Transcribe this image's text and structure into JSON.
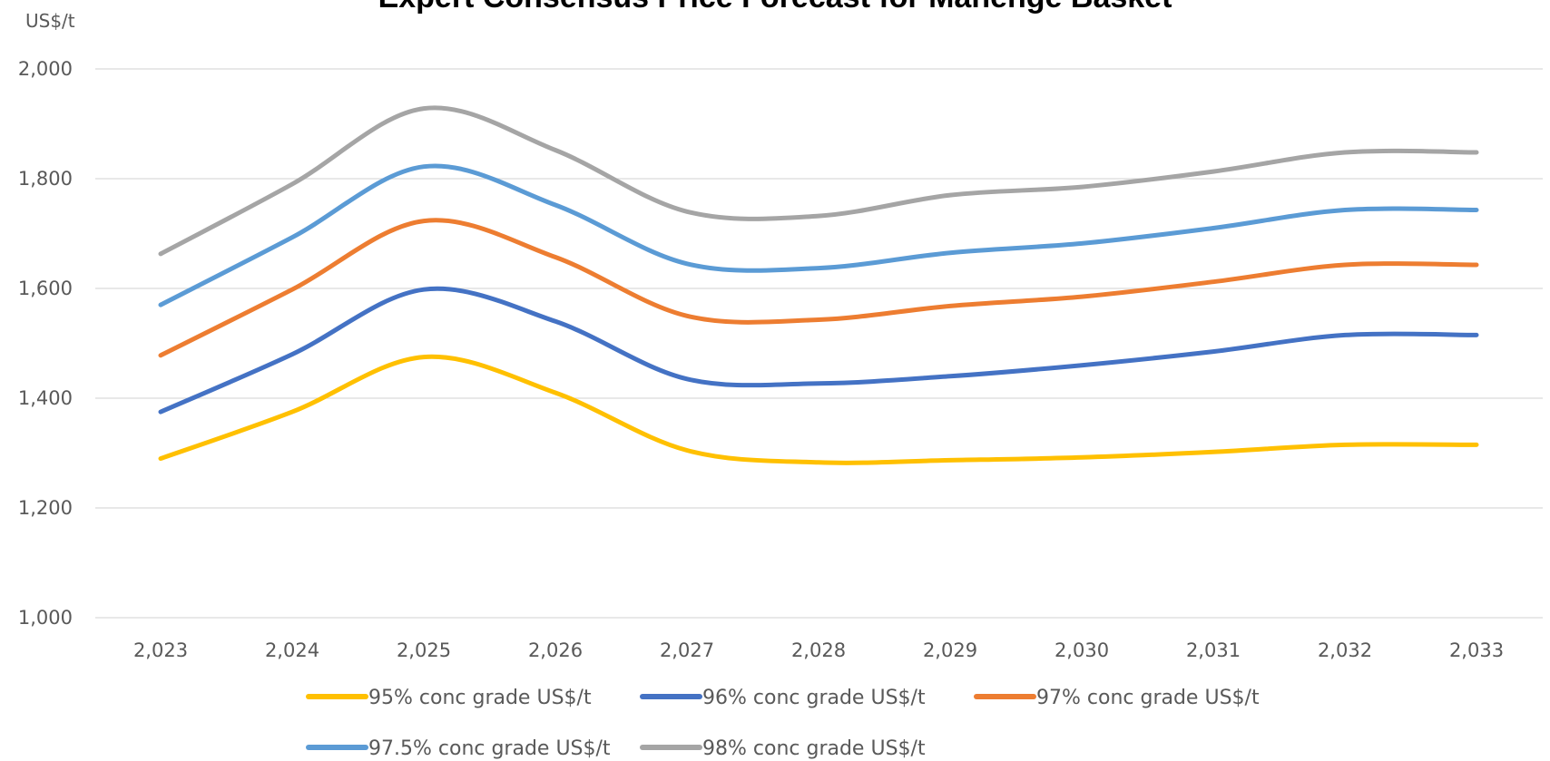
{
  "chart_data": {
    "type": "line",
    "title": "Expert Consensus Price Forecast for Mahenge Basket",
    "ylabel": "US$/t",
    "xlabel": "",
    "ylim": [
      1000,
      2000
    ],
    "y_ticks": [
      "1,000",
      "1,200",
      "1,400",
      "1,600",
      "1,800",
      "2,000"
    ],
    "y_tick_values": [
      1000,
      1200,
      1400,
      1600,
      1800,
      2000
    ],
    "categories": [
      "2,023",
      "2,024",
      "2,025",
      "2,026",
      "2,027",
      "2,028",
      "2,029",
      "2,030",
      "2,031",
      "2,032",
      "2,033"
    ],
    "grid": true,
    "smooth": true,
    "legend_position": "bottom",
    "series": [
      {
        "name": "95% conc grade US$/t",
        "color": "#FFC000",
        "values": [
          1290,
          1375,
          1475,
          1410,
          1305,
          1283,
          1287,
          1292,
          1302,
          1315,
          1315
        ]
      },
      {
        "name": "96% conc grade US$/t",
        "color": "#4472C4",
        "values": [
          1375,
          1480,
          1598,
          1540,
          1435,
          1427,
          1440,
          1460,
          1485,
          1515,
          1515
        ]
      },
      {
        "name": "97% conc grade US$/t",
        "color": "#ED7D31",
        "values": [
          1478,
          1598,
          1723,
          1657,
          1550,
          1543,
          1568,
          1585,
          1612,
          1643,
          1643
        ]
      },
      {
        "name": "97.5% conc grade US$/t",
        "color": "#5B9BD5",
        "values": [
          1570,
          1693,
          1822,
          1752,
          1645,
          1637,
          1665,
          1682,
          1710,
          1743,
          1743
        ]
      },
      {
        "name": "98% conc grade US$/t",
        "color": "#A5A5A5",
        "values": [
          1663,
          1790,
          1928,
          1852,
          1740,
          1732,
          1770,
          1785,
          1813,
          1848,
          1848
        ]
      }
    ]
  }
}
